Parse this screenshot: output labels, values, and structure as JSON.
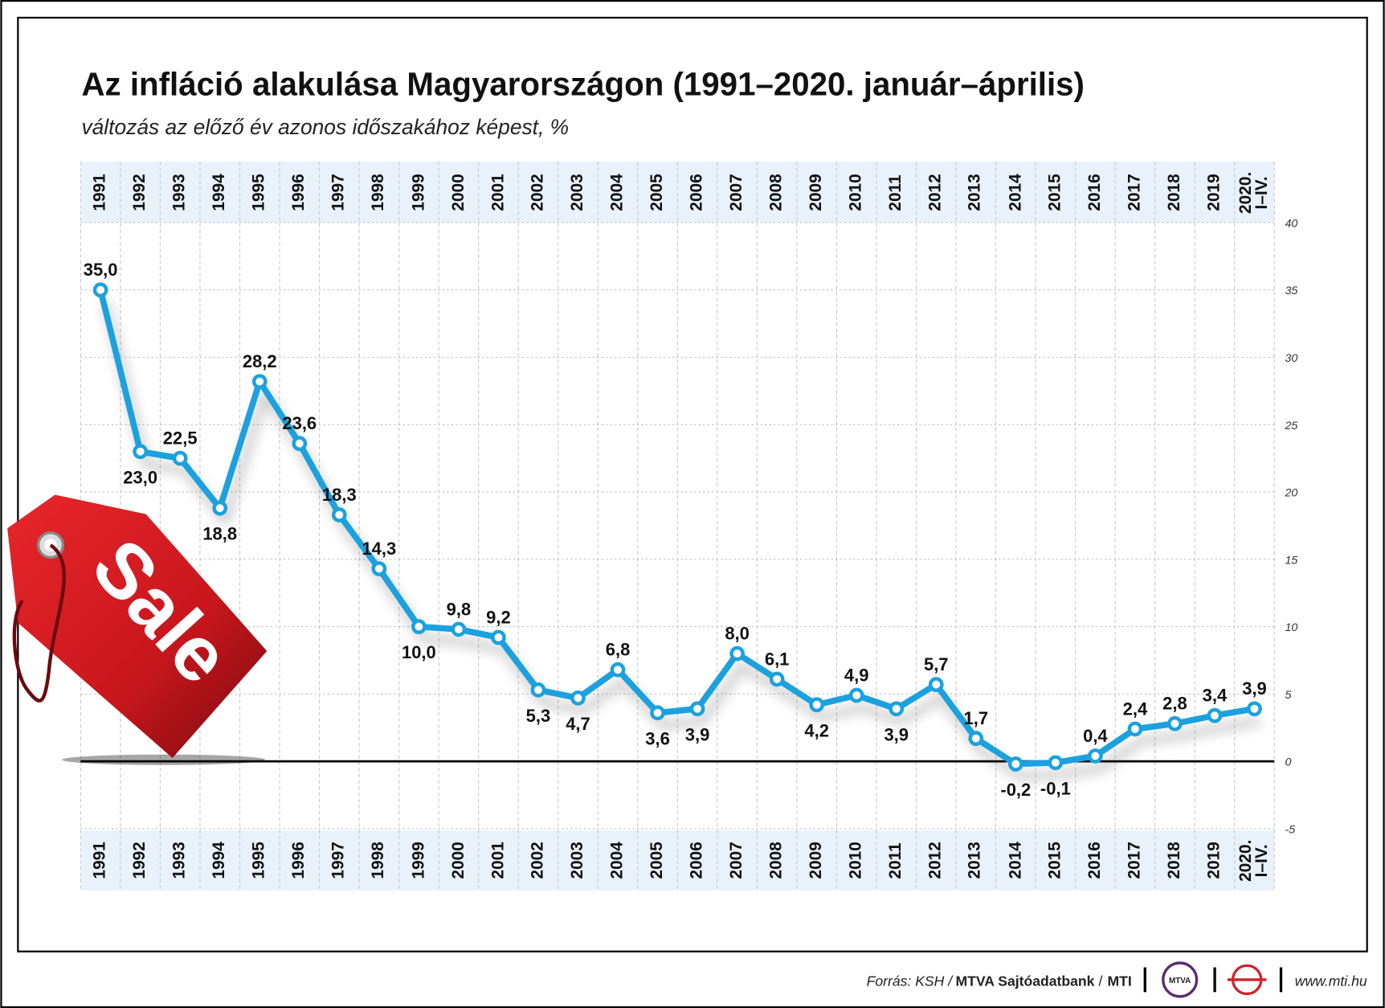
{
  "chart_data": {
    "type": "line",
    "title": "Az infláció alakulása Magyarországon (1991–2020. január–április)",
    "subtitle": "változás az előző év azonos időszakához képest, %",
    "categories": [
      "1991",
      "1992",
      "1993",
      "1994",
      "1995",
      "1996",
      "1997",
      "1998",
      "1999",
      "2000",
      "2001",
      "2002",
      "2003",
      "2004",
      "2005",
      "2006",
      "2007",
      "2008",
      "2009",
      "2010",
      "2011",
      "2012",
      "2013",
      "2014",
      "2015",
      "2016",
      "2017",
      "2018",
      "2019",
      "2020. I–IV."
    ],
    "values": [
      35.0,
      23.0,
      22.5,
      18.8,
      28.2,
      23.6,
      18.3,
      14.3,
      10.0,
      9.8,
      9.2,
      5.3,
      4.7,
      6.8,
      3.6,
      3.9,
      8.0,
      6.1,
      4.2,
      4.9,
      3.9,
      5.7,
      1.7,
      -0.2,
      -0.1,
      0.4,
      2.4,
      2.8,
      3.4,
      3.9
    ],
    "value_labels": [
      "35,0",
      "23,0",
      "22,5",
      "18,8",
      "28,2",
      "23,6",
      "18,3",
      "14,3",
      "10,0",
      "9,8",
      "9,2",
      "5,3",
      "4,7",
      "6,8",
      "3,6",
      "3,9",
      "8,0",
      "6,1",
      "4,2",
      "4,9",
      "3,9",
      "5,7",
      "1,7",
      "-0,2",
      "-0,1",
      "0,4",
      "2,4",
      "2,8",
      "3,4",
      "3,9"
    ],
    "color": "#1ba1de",
    "ylim": [
      -5,
      40
    ],
    "yticks": [
      -5,
      0,
      5,
      10,
      15,
      20,
      25,
      30,
      35,
      40
    ],
    "grid": true,
    "tag": "Sale"
  },
  "footer": {
    "source_label": "Forrás: KSH /",
    "source_agency": "MTVA Sajtóadatbank",
    "source_sep": "/",
    "source_org": "MTI",
    "logo": "MTVA",
    "url": "www.mti.hu"
  }
}
